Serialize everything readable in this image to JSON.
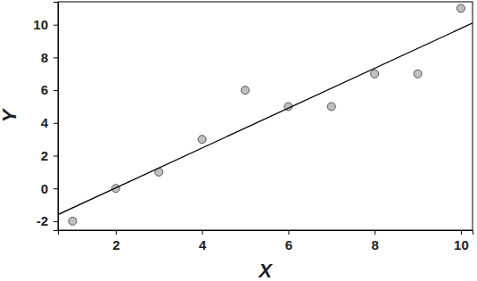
{
  "chart_data": {
    "type": "scatter",
    "x_label": "X",
    "y_label": "Y",
    "xlim": [
      0.66,
      10.27
    ],
    "ylim": [
      -2.55,
      11.4
    ],
    "xticks": [
      2,
      4,
      6,
      8,
      10
    ],
    "yticks": [
      -2,
      0,
      2,
      4,
      6,
      8,
      10
    ],
    "grid": false,
    "series": [
      {
        "type": "scatter",
        "marker": "circle",
        "color": "#c0c0c0",
        "x": [
          1,
          2,
          3,
          4,
          5,
          6,
          7,
          8,
          9,
          10
        ],
        "values": [
          -2,
          0,
          1,
          3,
          6,
          5,
          5,
          7,
          7,
          11
        ]
      },
      {
        "type": "line",
        "line_style": "solid",
        "color": "#000000",
        "x": [
          0.66,
          10.27
        ],
        "values": [
          -1.6,
          10.1
        ]
      }
    ]
  }
}
